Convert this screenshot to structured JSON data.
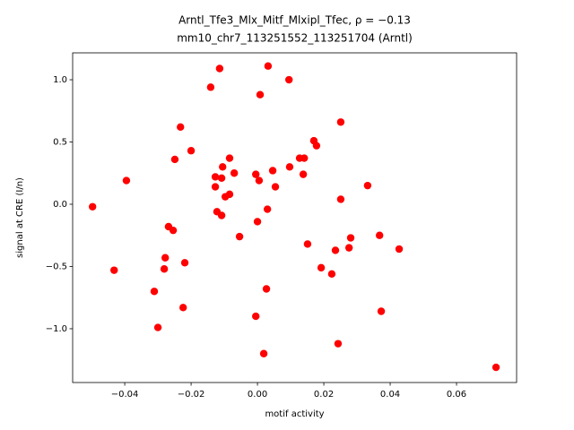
{
  "chart_data": {
    "type": "scatter",
    "title": "Arntl_Tfe3_Mlx_Mitf_Mlxipl_Tfec, ρ = −0.13",
    "subtitle": "mm10_chr7_113251552_113251704 (Arntl)",
    "x_label": "motif activity",
    "y_label": "signal at CRE (I/n)",
    "color": "#ff0000",
    "grid": false,
    "x": [
      -0.0497,
      -0.0395,
      -0.0432,
      -0.0311,
      -0.03,
      -0.0278,
      -0.0281,
      -0.0268,
      -0.0254,
      -0.0249,
      -0.0232,
      -0.0219,
      -0.0224,
      -0.02,
      -0.0141,
      -0.0114,
      -0.0127,
      -0.0127,
      -0.0122,
      -0.0108,
      -0.0108,
      -0.0105,
      -0.0097,
      -0.0084,
      -0.0084,
      -0.007,
      -0.0054,
      -0.0005,
      0.0005,
      0.0,
      -0.0005,
      0.0008,
      0.0032,
      0.003,
      0.0027,
      0.0019,
      0.0046,
      0.0054,
      0.0095,
      0.0097,
      0.0127,
      0.0141,
      0.0138,
      0.0151,
      0.017,
      0.0178,
      0.0192,
      0.0224,
      0.0235,
      0.0243,
      0.0251,
      0.0251,
      0.0276,
      0.0281,
      0.0332,
      0.0368,
      0.0373,
      0.0427,
      0.0719
    ],
    "values": [
      -0.02,
      0.19,
      -0.53,
      -0.7,
      -0.99,
      -0.43,
      -0.52,
      -0.18,
      -0.21,
      0.36,
      0.62,
      -0.47,
      -0.83,
      0.43,
      0.94,
      1.09,
      0.22,
      0.14,
      -0.06,
      -0.09,
      0.21,
      0.3,
      0.06,
      0.37,
      0.08,
      0.25,
      -0.26,
      0.24,
      0.19,
      -0.14,
      -0.9,
      0.88,
      1.11,
      -0.04,
      -0.68,
      -1.2,
      0.27,
      0.14,
      1.0,
      0.3,
      0.37,
      0.37,
      0.24,
      -0.32,
      0.51,
      0.47,
      -0.51,
      -0.56,
      -0.37,
      -1.12,
      0.66,
      0.04,
      -0.35,
      -0.27,
      0.15,
      -0.25,
      -0.86,
      -0.36,
      -1.31
    ],
    "xlim": [
      -0.0557,
      0.0781
    ],
    "ylim": [
      -1.432,
      1.216
    ],
    "xticks": [
      {
        "value": -0.04,
        "label": "−0.04"
      },
      {
        "value": -0.02,
        "label": "−0.02"
      },
      {
        "value": 0,
        "label": "0.00"
      },
      {
        "value": 0.02,
        "label": "0.02"
      },
      {
        "value": 0.04,
        "label": "0.04"
      },
      {
        "value": 0.06,
        "label": "0.06"
      }
    ],
    "yticks": [
      {
        "value": -1,
        "label": "−1.0"
      },
      {
        "value": -0.5,
        "label": "−0.5"
      },
      {
        "value": 0,
        "label": "0.0"
      },
      {
        "value": 0.5,
        "label": "0.5"
      },
      {
        "value": 1,
        "label": "1.0"
      }
    ]
  }
}
